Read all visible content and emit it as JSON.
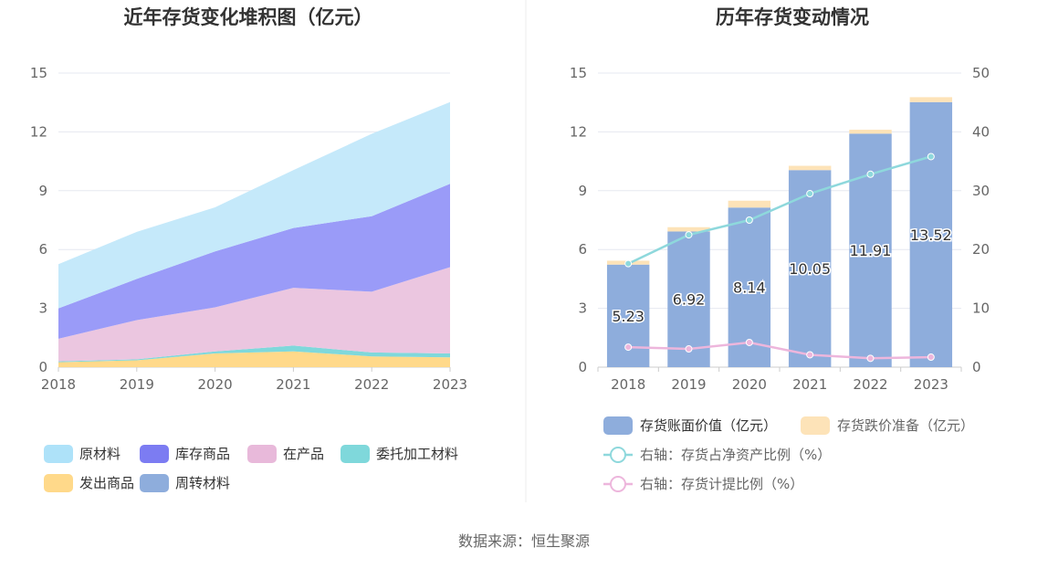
{
  "chart_data": [
    {
      "type": "area",
      "title": "近年存货变化堆积图（亿元）",
      "x": [
        "2018",
        "2019",
        "2020",
        "2021",
        "2022",
        "2023"
      ],
      "ylim": [
        0,
        15
      ],
      "yticks": [
        0,
        3,
        6,
        9,
        12,
        15
      ],
      "grid": true,
      "legend_position": "bottom",
      "series": [
        {
          "name": "发出商品",
          "color": "#FFD98A",
          "values": [
            0.25,
            0.35,
            0.7,
            0.8,
            0.55,
            0.5
          ]
        },
        {
          "name": "委托加工材料",
          "color": "#7FD8DB",
          "values": [
            0.05,
            0.05,
            0.1,
            0.3,
            0.2,
            0.2
          ]
        },
        {
          "name": "在产品",
          "color": "#EBC6E0",
          "values": [
            1.15,
            2.0,
            2.25,
            2.95,
            3.1,
            4.4
          ]
        },
        {
          "name": "库存商品",
          "color": "#9A9BF8",
          "values": [
            1.55,
            2.1,
            2.85,
            3.05,
            3.85,
            4.25
          ]
        },
        {
          "name": "周转材料",
          "color": "#8EADDC",
          "values": [
            0,
            0,
            0,
            0,
            0,
            0
          ]
        },
        {
          "name": "原材料",
          "color": "#C5E9FA",
          "values": [
            2.25,
            2.4,
            2.25,
            2.95,
            4.2,
            4.17
          ]
        }
      ],
      "legend_order": [
        "原材料",
        "库存商品",
        "在产品",
        "委托加工材料",
        "发出商品",
        "周转材料"
      ],
      "legend_colors": {
        "原材料": "#AEE2F9",
        "库存商品": "#7C7CF2",
        "在产品": "#E8B9DA",
        "委托加工材料": "#7FD8DB",
        "发出商品": "#FFD98A",
        "周转材料": "#8EADDC"
      }
    },
    {
      "type": "bar",
      "title": "历年存货变动情况",
      "categories": [
        "2018",
        "2019",
        "2020",
        "2021",
        "2022",
        "2023"
      ],
      "ylim": [
        0,
        15
      ],
      "yticks": [
        0,
        3,
        6,
        9,
        12,
        15
      ],
      "y2lim": [
        0,
        50
      ],
      "y2ticks": [
        0,
        10,
        20,
        30,
        40,
        50
      ],
      "grid": true,
      "legend_position": "bottom",
      "series": [
        {
          "name": "存货账面价值（亿元）",
          "kind": "bar",
          "color": "#8EADDC",
          "values": [
            5.23,
            6.92,
            8.14,
            10.05,
            11.91,
            13.52
          ],
          "labels": [
            "5.23",
            "6.92",
            "8.14",
            "10.05",
            "11.91",
            "13.52"
          ]
        },
        {
          "name": "存货跌价准备（亿元）",
          "kind": "bar",
          "stacked": true,
          "color": "#FDE3B8",
          "values": [
            0.2,
            0.22,
            0.35,
            0.22,
            0.2,
            0.25
          ]
        },
        {
          "name": "右轴：存货占净资产比例（%）",
          "kind": "line",
          "axis": "right",
          "color": "#8ED8DC",
          "values": [
            17.6,
            22.5,
            25.0,
            29.5,
            32.8,
            35.8
          ]
        },
        {
          "name": "右轴：存货计提比例（%）",
          "kind": "line",
          "axis": "right",
          "color": "#EDB6DC",
          "values": [
            3.4,
            3.1,
            4.2,
            2.1,
            1.5,
            1.7
          ]
        }
      ]
    }
  ],
  "source": "数据来源：恒生聚源"
}
